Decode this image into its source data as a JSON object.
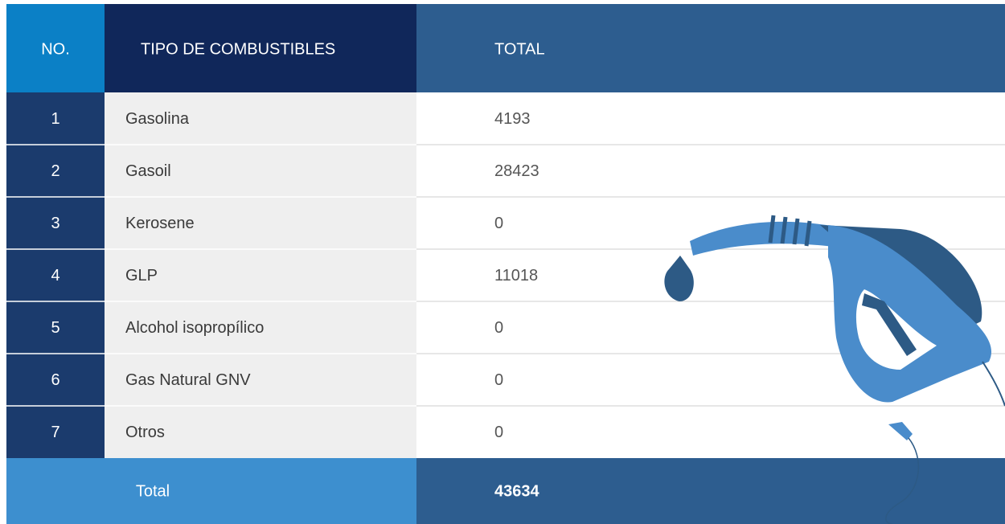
{
  "table": {
    "header": [
      "NO.",
      "TIPO DE COMBUSTIBLES",
      "TOTAL"
    ],
    "rows": [
      [
        "1",
        "Gasolina",
        "4193"
      ],
      [
        "2",
        "Gasoil",
        "28423"
      ],
      [
        "3",
        "Kerosene",
        "0"
      ],
      [
        "4",
        "GLP",
        "11018"
      ],
      [
        "5",
        "Alcohol isopropílico",
        "0"
      ],
      [
        "6",
        "Gas Natural GNV",
        "0"
      ],
      [
        "7",
        "Otros",
        "0"
      ]
    ],
    "footer": [
      "Total",
      "43634"
    ]
  }
}
